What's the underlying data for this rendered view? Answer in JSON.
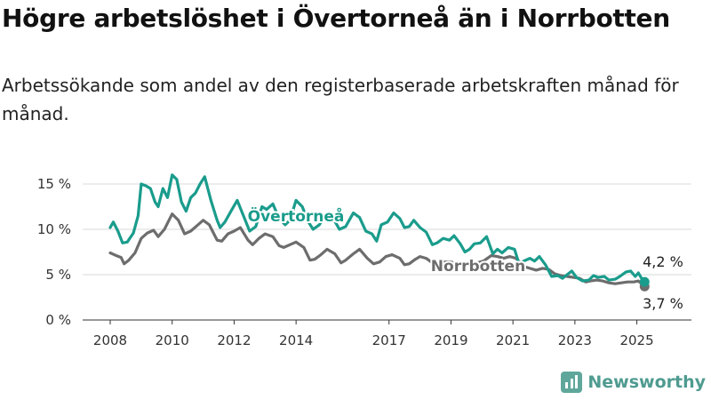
{
  "header": {
    "title": "Högre arbetslöshet i Övertorneå än i Norrbotten",
    "subtitle": "Arbetssökande som andel av den registerbaserade arbetskraften månad för månad."
  },
  "brand": {
    "name": "Newsworthy",
    "icon": "newsworthy-logo-icon"
  },
  "chart_data": {
    "type": "line",
    "title": "Högre arbetslöshet i Övertorneå än i Norrbotten",
    "subtitle": "Arbetssökande som andel av den registerbaserade arbetskraften månad för månad.",
    "xlabel": "",
    "ylabel": "",
    "xlim": [
      2008,
      2025.5
    ],
    "ylim": [
      0,
      16
    ],
    "yticks": [
      0,
      5,
      10,
      15
    ],
    "ytick_labels": [
      "0 %",
      "5 %",
      "10 %",
      "15 %"
    ],
    "xticks": [
      2008,
      2010,
      2012,
      2014,
      2017,
      2019,
      2021,
      2023,
      2025
    ],
    "xtick_labels": [
      "2008",
      "2010",
      "2012",
      "2014",
      "2017",
      "2019",
      "2021",
      "2023",
      "2025"
    ],
    "grid": true,
    "legend": "inline labels",
    "series": [
      {
        "name": "Övertorneå",
        "color": "#1a9c8c",
        "end_label": "4,2 %",
        "points": [
          [
            2008.0,
            10.2
          ],
          [
            2008.1,
            10.8
          ],
          [
            2008.25,
            9.8
          ],
          [
            2008.4,
            8.5
          ],
          [
            2008.55,
            8.6
          ],
          [
            2008.75,
            9.6
          ],
          [
            2008.9,
            11.5
          ],
          [
            2009.0,
            15.0
          ],
          [
            2009.15,
            14.8
          ],
          [
            2009.3,
            14.5
          ],
          [
            2009.45,
            13.0
          ],
          [
            2009.55,
            12.5
          ],
          [
            2009.7,
            14.5
          ],
          [
            2009.85,
            13.5
          ],
          [
            2010.0,
            16.0
          ],
          [
            2010.15,
            15.5
          ],
          [
            2010.3,
            13.0
          ],
          [
            2010.45,
            12.0
          ],
          [
            2010.6,
            13.5
          ],
          [
            2010.75,
            14.0
          ],
          [
            2010.9,
            15.0
          ],
          [
            2011.05,
            15.8
          ],
          [
            2011.25,
            13.2
          ],
          [
            2011.45,
            11.0
          ],
          [
            2011.55,
            10.2
          ],
          [
            2011.7,
            10.8
          ],
          [
            2011.9,
            12.0
          ],
          [
            2012.1,
            13.2
          ],
          [
            2012.3,
            11.5
          ],
          [
            2012.5,
            9.8
          ],
          [
            2012.7,
            10.3
          ],
          [
            2012.9,
            12.5
          ],
          [
            2013.05,
            12.2
          ],
          [
            2013.25,
            12.8
          ],
          [
            2013.45,
            11.2
          ],
          [
            2013.65,
            10.5
          ],
          [
            2013.8,
            11.0
          ],
          [
            2014.0,
            13.2
          ],
          [
            2014.2,
            12.5
          ],
          [
            2014.4,
            10.8
          ],
          [
            2014.55,
            10.0
          ],
          [
            2014.75,
            10.5
          ],
          [
            2015.0,
            11.8
          ],
          [
            2015.2,
            11.2
          ],
          [
            2015.4,
            10.0
          ],
          [
            2015.6,
            10.3
          ],
          [
            2015.85,
            11.8
          ],
          [
            2016.05,
            11.3
          ],
          [
            2016.25,
            9.8
          ],
          [
            2016.45,
            9.5
          ],
          [
            2016.6,
            8.7
          ],
          [
            2016.75,
            10.5
          ],
          [
            2016.95,
            10.8
          ],
          [
            2017.15,
            11.8
          ],
          [
            2017.35,
            11.2
          ],
          [
            2017.5,
            10.2
          ],
          [
            2017.65,
            10.3
          ],
          [
            2017.8,
            11.0
          ],
          [
            2018.0,
            10.2
          ],
          [
            2018.2,
            9.7
          ],
          [
            2018.4,
            8.3
          ],
          [
            2018.55,
            8.5
          ],
          [
            2018.75,
            9.0
          ],
          [
            2018.95,
            8.8
          ],
          [
            2019.1,
            9.3
          ],
          [
            2019.3,
            8.4
          ],
          [
            2019.45,
            7.5
          ],
          [
            2019.6,
            7.8
          ],
          [
            2019.75,
            8.4
          ],
          [
            2019.95,
            8.5
          ],
          [
            2020.15,
            9.2
          ],
          [
            2020.35,
            7.3
          ],
          [
            2020.5,
            7.8
          ],
          [
            2020.65,
            7.4
          ],
          [
            2020.85,
            8.0
          ],
          [
            2021.05,
            7.8
          ],
          [
            2021.2,
            6.2
          ],
          [
            2021.35,
            6.5
          ],
          [
            2021.55,
            6.8
          ],
          [
            2021.7,
            6.5
          ],
          [
            2021.85,
            7.0
          ],
          [
            2022.05,
            6.1
          ],
          [
            2022.25,
            4.8
          ],
          [
            2022.45,
            4.9
          ],
          [
            2022.6,
            4.6
          ],
          [
            2022.75,
            5.0
          ],
          [
            2022.9,
            5.4
          ],
          [
            2023.05,
            4.7
          ],
          [
            2023.25,
            4.3
          ],
          [
            2023.45,
            4.4
          ],
          [
            2023.6,
            4.9
          ],
          [
            2023.75,
            4.7
          ],
          [
            2023.95,
            4.8
          ],
          [
            2024.1,
            4.4
          ],
          [
            2024.3,
            4.5
          ],
          [
            2024.45,
            4.8
          ],
          [
            2024.65,
            5.3
          ],
          [
            2024.8,
            5.4
          ],
          [
            2024.95,
            4.8
          ],
          [
            2025.05,
            5.2
          ],
          [
            2025.15,
            4.6
          ],
          [
            2025.25,
            4.2
          ]
        ]
      },
      {
        "name": "Norrbotten",
        "color": "#6d6d6d",
        "end_label": "3,7 %",
        "points": [
          [
            2008.0,
            7.4
          ],
          [
            2008.2,
            7.1
          ],
          [
            2008.35,
            6.9
          ],
          [
            2008.45,
            6.2
          ],
          [
            2008.6,
            6.6
          ],
          [
            2008.8,
            7.4
          ],
          [
            2009.0,
            9.0
          ],
          [
            2009.2,
            9.6
          ],
          [
            2009.4,
            9.9
          ],
          [
            2009.55,
            9.2
          ],
          [
            2009.75,
            10.0
          ],
          [
            2010.0,
            11.7
          ],
          [
            2010.2,
            11.0
          ],
          [
            2010.4,
            9.5
          ],
          [
            2010.6,
            9.8
          ],
          [
            2010.8,
            10.4
          ],
          [
            2011.0,
            11.0
          ],
          [
            2011.2,
            10.5
          ],
          [
            2011.45,
            8.8
          ],
          [
            2011.6,
            8.7
          ],
          [
            2011.8,
            9.5
          ],
          [
            2012.0,
            9.8
          ],
          [
            2012.2,
            10.2
          ],
          [
            2012.45,
            8.8
          ],
          [
            2012.6,
            8.3
          ],
          [
            2012.8,
            9.0
          ],
          [
            2013.0,
            9.5
          ],
          [
            2013.25,
            9.2
          ],
          [
            2013.45,
            8.2
          ],
          [
            2013.6,
            8.0
          ],
          [
            2013.8,
            8.3
          ],
          [
            2014.0,
            8.6
          ],
          [
            2014.25,
            8.0
          ],
          [
            2014.45,
            6.6
          ],
          [
            2014.6,
            6.7
          ],
          [
            2014.8,
            7.2
          ],
          [
            2015.0,
            7.8
          ],
          [
            2015.25,
            7.3
          ],
          [
            2015.45,
            6.3
          ],
          [
            2015.6,
            6.6
          ],
          [
            2015.85,
            7.3
          ],
          [
            2016.05,
            7.8
          ],
          [
            2016.3,
            6.8
          ],
          [
            2016.5,
            6.2
          ],
          [
            2016.7,
            6.4
          ],
          [
            2016.9,
            7.0
          ],
          [
            2017.1,
            7.2
          ],
          [
            2017.35,
            6.8
          ],
          [
            2017.5,
            6.1
          ],
          [
            2017.65,
            6.2
          ],
          [
            2017.85,
            6.7
          ],
          [
            2018.0,
            7.0
          ],
          [
            2018.2,
            6.8
          ],
          [
            2018.4,
            6.3
          ],
          [
            2018.6,
            6.3
          ],
          [
            2018.8,
            6.4
          ],
          [
            2019.0,
            6.4
          ],
          [
            2019.2,
            6.2
          ],
          [
            2019.45,
            6.0
          ],
          [
            2019.65,
            6.1
          ],
          [
            2019.85,
            6.3
          ],
          [
            2020.05,
            6.5
          ],
          [
            2020.3,
            7.1
          ],
          [
            2020.5,
            7.0
          ],
          [
            2020.7,
            6.8
          ],
          [
            2020.9,
            7.0
          ],
          [
            2021.1,
            6.8
          ],
          [
            2021.35,
            5.9
          ],
          [
            2021.55,
            5.7
          ],
          [
            2021.75,
            5.5
          ],
          [
            2021.95,
            5.7
          ],
          [
            2022.15,
            5.6
          ],
          [
            2022.35,
            5.1
          ],
          [
            2022.55,
            4.9
          ],
          [
            2022.75,
            4.8
          ],
          [
            2022.95,
            4.7
          ],
          [
            2023.15,
            4.6
          ],
          [
            2023.35,
            4.2
          ],
          [
            2023.5,
            4.3
          ],
          [
            2023.7,
            4.4
          ],
          [
            2023.9,
            4.3
          ],
          [
            2024.1,
            4.1
          ],
          [
            2024.3,
            4.0
          ],
          [
            2024.5,
            4.1
          ],
          [
            2024.7,
            4.2
          ],
          [
            2024.9,
            4.2
          ],
          [
            2025.05,
            4.3
          ],
          [
            2025.15,
            4.0
          ],
          [
            2025.25,
            3.7
          ]
        ]
      }
    ]
  }
}
